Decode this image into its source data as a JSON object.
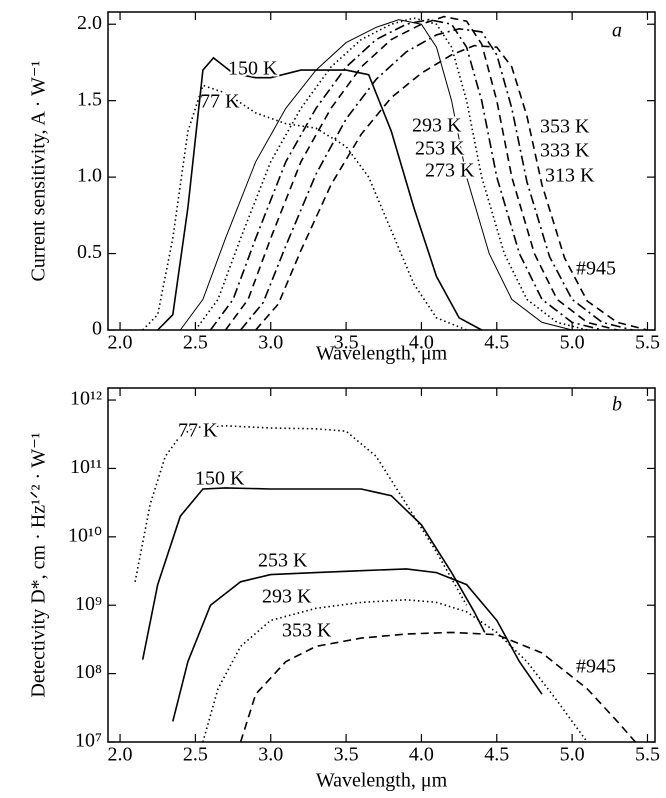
{
  "chart_data": [
    {
      "type": "line",
      "panel_label": "a",
      "annotation": "#945",
      "xlabel": "Wavelength, μm",
      "ylabel": "Current sensitivity, A · W⁻¹",
      "xlim": [
        1.92,
        5.55
      ],
      "ylim": [
        0,
        2.08
      ],
      "xticks": [
        {
          "value": 2,
          "label": "2.0"
        },
        2.5,
        {
          "value": 3,
          "label": "3.0"
        },
        3.5,
        {
          "value": 4,
          "label": "4.0"
        },
        4.5,
        {
          "value": 5,
          "label": "5.0"
        },
        5.5
      ],
      "yticks": [
        0,
        0.5,
        {
          "value": 1,
          "label": "1.0"
        },
        1.5,
        {
          "value": 2,
          "label": "2.0"
        }
      ],
      "series": [
        {
          "name": "77 K",
          "color": "#000",
          "style": "dotted",
          "x": [
            2.15,
            2.25,
            2.35,
            2.45,
            2.55,
            2.7,
            2.9,
            3.1,
            3.3,
            3.5,
            3.65,
            3.8,
            3.95,
            4.1,
            4.3
          ],
          "values": [
            0,
            0.1,
            0.6,
            1.3,
            1.6,
            1.55,
            1.42,
            1.35,
            1.32,
            1.2,
            1.0,
            0.65,
            0.3,
            0.08,
            0
          ]
        },
        {
          "name": "150 K",
          "color": "#000",
          "style": "solid",
          "x": [
            2.25,
            2.35,
            2.45,
            2.55,
            2.62,
            2.75,
            2.9,
            3.0,
            3.2,
            3.5,
            3.65,
            3.8,
            3.95,
            4.1,
            4.25,
            4.4
          ],
          "values": [
            0,
            0.1,
            0.8,
            1.7,
            1.78,
            1.68,
            1.65,
            1.65,
            1.7,
            1.7,
            1.67,
            1.3,
            0.8,
            0.35,
            0.08,
            0
          ]
        },
        {
          "name": "293 K",
          "color": "#000",
          "style": "thin",
          "x": [
            2.4,
            2.55,
            2.7,
            2.9,
            3.1,
            3.3,
            3.5,
            3.7,
            3.85,
            4.0,
            4.1,
            4.2,
            4.3,
            4.45,
            4.6,
            4.8,
            5.0
          ],
          "values": [
            0,
            0.2,
            0.6,
            1.1,
            1.45,
            1.7,
            1.88,
            1.98,
            2.03,
            2.0,
            1.85,
            1.5,
            1.0,
            0.5,
            0.2,
            0.05,
            0
          ]
        },
        {
          "name": "253 K",
          "color": "#000",
          "style": "dotted",
          "x": [
            2.5,
            2.65,
            2.8,
            3.0,
            3.2,
            3.4,
            3.6,
            3.8,
            3.95,
            4.1,
            4.2,
            4.3,
            4.4,
            4.55,
            4.7,
            4.9,
            5.1
          ],
          "values": [
            0,
            0.2,
            0.6,
            1.1,
            1.45,
            1.72,
            1.9,
            2.0,
            2.04,
            2.0,
            1.85,
            1.5,
            1.0,
            0.5,
            0.2,
            0.05,
            0
          ]
        },
        {
          "name": "273 K",
          "color": "#000",
          "style": "dashdot",
          "x": [
            2.6,
            2.75,
            2.9,
            3.1,
            3.3,
            3.5,
            3.7,
            3.9,
            4.05,
            4.2,
            4.3,
            4.4,
            4.5,
            4.65,
            4.8,
            5.0,
            5.2
          ],
          "values": [
            0,
            0.2,
            0.6,
            1.1,
            1.45,
            1.72,
            1.9,
            2.0,
            2.03,
            2.0,
            1.85,
            1.5,
            1.0,
            0.5,
            0.2,
            0.05,
            0
          ]
        },
        {
          "name": "353 K",
          "color": "#000",
          "style": "dashed",
          "x": [
            2.7,
            2.85,
            3.0,
            3.2,
            3.4,
            3.6,
            3.8,
            4.0,
            4.15,
            4.3,
            4.4,
            4.5,
            4.6,
            4.75,
            4.9,
            5.1,
            5.3
          ],
          "values": [
            0,
            0.2,
            0.6,
            1.1,
            1.45,
            1.72,
            1.9,
            2.0,
            2.05,
            2.02,
            1.87,
            1.5,
            1.0,
            0.5,
            0.2,
            0.05,
            0
          ]
        },
        {
          "name": "333 K",
          "color": "#000",
          "style": "dashdot",
          "x": [
            2.8,
            2.95,
            3.1,
            3.3,
            3.5,
            3.7,
            3.9,
            4.1,
            4.25,
            4.4,
            4.5,
            4.6,
            4.7,
            4.85,
            5.0,
            5.2,
            5.4
          ],
          "values": [
            0,
            0.18,
            0.55,
            1.02,
            1.38,
            1.64,
            1.82,
            1.93,
            1.97,
            1.95,
            1.8,
            1.45,
            0.97,
            0.48,
            0.2,
            0.05,
            0
          ]
        },
        {
          "name": "313 K",
          "color": "#000",
          "style": "dashed",
          "x": [
            2.9,
            3.05,
            3.2,
            3.4,
            3.6,
            3.8,
            4.0,
            4.2,
            4.35,
            4.5,
            4.6,
            4.7,
            4.8,
            4.95,
            5.1,
            5.3,
            5.5
          ],
          "values": [
            0,
            0.17,
            0.52,
            0.95,
            1.28,
            1.52,
            1.68,
            1.8,
            1.86,
            1.85,
            1.72,
            1.4,
            0.95,
            0.47,
            0.19,
            0.05,
            0
          ]
        }
      ]
    },
    {
      "type": "line",
      "panel_label": "b",
      "annotation": "#945",
      "xlabel": "Wavelength, μm",
      "ylabel": "Detectivity D*, cm · Hz¹ᐟ² · W⁻¹",
      "log_y": true,
      "xlim": [
        1.92,
        5.55
      ],
      "ylim": [
        10000000,
        1500000000000
      ],
      "xticks": [
        {
          "value": 2,
          "label": "2.0"
        },
        2.5,
        {
          "value": 3,
          "label": "3.0"
        },
        3.5,
        {
          "value": 4,
          "label": "4.0"
        },
        4.5,
        {
          "value": 5,
          "label": "5.0"
        },
        5.5
      ],
      "yticks": [
        {
          "value": 10000000,
          "label": "10⁷"
        },
        {
          "value": 100000000,
          "label": "10⁸"
        },
        {
          "value": 1000000000,
          "label": "10⁹"
        },
        {
          "value": 10000000000,
          "label": "10¹⁰"
        },
        {
          "value": 100000000000,
          "label": "10¹¹"
        },
        {
          "value": 1000000000000,
          "label": "10¹²"
        }
      ],
      "series": [
        {
          "name": "77 K",
          "color": "#000",
          "style": "dotted",
          "x": [
            2.1,
            2.2,
            2.3,
            2.4,
            2.5,
            2.7,
            3.0,
            3.3,
            3.5,
            3.7,
            3.9,
            4.1,
            4.3
          ],
          "values": [
            2200000000,
            30000000000,
            150000000000,
            300000000000,
            400000000000,
            420000000000,
            390000000000,
            380000000000,
            350000000000,
            150000000000,
            30000000000,
            6000000000,
            1000000000
          ]
        },
        {
          "name": "150 K",
          "color": "#000",
          "style": "solid",
          "x": [
            2.15,
            2.25,
            2.4,
            2.55,
            2.7,
            3.0,
            3.3,
            3.6,
            3.8,
            4.0,
            4.2,
            4.35,
            4.42
          ],
          "values": [
            160000000,
            2000000000,
            20000000000,
            50000000000,
            52000000000,
            50000000000,
            50000000000,
            50000000000,
            40000000000,
            15000000000,
            3000000000,
            800000000,
            400000000
          ]
        },
        {
          "name": "253 K",
          "color": "#000",
          "style": "solid",
          "x": [
            2.35,
            2.45,
            2.6,
            2.8,
            3.0,
            3.3,
            3.6,
            3.9,
            4.1,
            4.3,
            4.5,
            4.65,
            4.8
          ],
          "values": [
            20000000,
            150000000,
            1000000000,
            2200000000,
            2800000000,
            3000000000,
            3200000000,
            3400000000,
            3000000000,
            2000000000,
            600000000,
            150000000,
            50000000
          ]
        },
        {
          "name": "293 K",
          "color": "#000",
          "style": "dotted",
          "x": [
            2.55,
            2.65,
            2.8,
            3.0,
            3.3,
            3.6,
            3.9,
            4.1,
            4.3,
            4.5,
            4.7,
            4.9,
            5.1
          ],
          "values": [
            10000000,
            60000000,
            250000000,
            600000000,
            900000000,
            1100000000,
            1200000000,
            1100000000,
            800000000,
            400000000,
            150000000,
            40000000,
            10000000
          ]
        },
        {
          "name": "353 K",
          "color": "#000",
          "style": "dashed",
          "x": [
            2.8,
            2.9,
            3.1,
            3.3,
            3.6,
            3.9,
            4.2,
            4.5,
            4.8,
            5.1,
            5.3,
            5.42
          ],
          "values": [
            10000000,
            50000000,
            150000000,
            250000000,
            330000000,
            380000000,
            400000000,
            370000000,
            200000000,
            60000000,
            20000000,
            10000000
          ]
        }
      ]
    }
  ]
}
